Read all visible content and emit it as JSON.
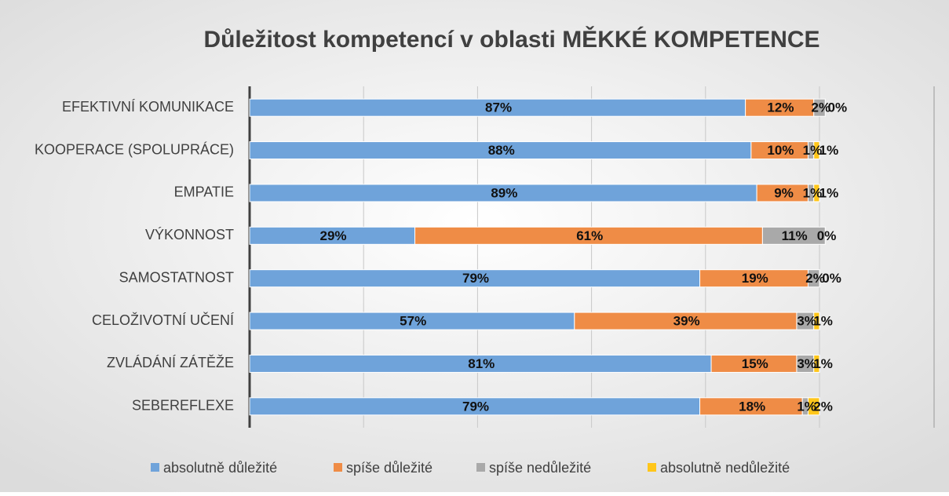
{
  "chart_data": {
    "type": "stacked_barh",
    "title": "Důležitost kompetencí v oblasti MĚKKÉ KOMPETENCE",
    "categories": [
      "EFEKTIVNÍ KOMUNIKACE",
      "KOOPERACE (SPOLUPRÁCE)",
      "EMPATIE",
      "VÝKONNOST",
      "SAMOSTATNOST",
      "CELOŽIVOTNÍ UČENÍ",
      "ZVLÁDÁNÍ ZÁTĚŽE",
      "SEBEREFLEXE"
    ],
    "series": [
      {
        "name": "absolutně důležité",
        "color": "#6fa3da",
        "values": [
          87,
          88,
          89,
          29,
          79,
          57,
          81,
          79
        ],
        "value_labels": [
          "87%",
          "88%",
          "89%",
          "29%",
          "79%",
          "57%",
          "81%",
          "79%"
        ]
      },
      {
        "name": "spíše důležité",
        "color": "#ef8c46",
        "values": [
          12,
          10,
          9,
          61,
          19,
          39,
          15,
          18
        ],
        "value_labels": [
          "12%",
          "10%",
          "9%",
          "61%",
          "19%",
          "39%",
          "15%",
          "18%"
        ]
      },
      {
        "name": "spíše nedůležité",
        "color": "#a9a9a9",
        "values": [
          2,
          1,
          1,
          11,
          2,
          3,
          3,
          1
        ],
        "value_labels": [
          "2%",
          "1%",
          "1%",
          "11%",
          "2%",
          "3%",
          "3%",
          "1%"
        ]
      },
      {
        "name": "absolutně nedůležité",
        "color": "#ffc61a",
        "values": [
          0,
          1,
          1,
          0,
          0,
          1,
          1,
          2
        ],
        "value_labels": [
          "0%",
          "1%",
          "1%",
          "0%",
          "0%",
          "1%",
          "1%",
          "2%"
        ]
      }
    ],
    "xlim": [
      0,
      100
    ],
    "xticks": [
      0,
      20,
      40,
      60,
      80,
      100
    ],
    "grid": true,
    "legend": "bottom"
  }
}
